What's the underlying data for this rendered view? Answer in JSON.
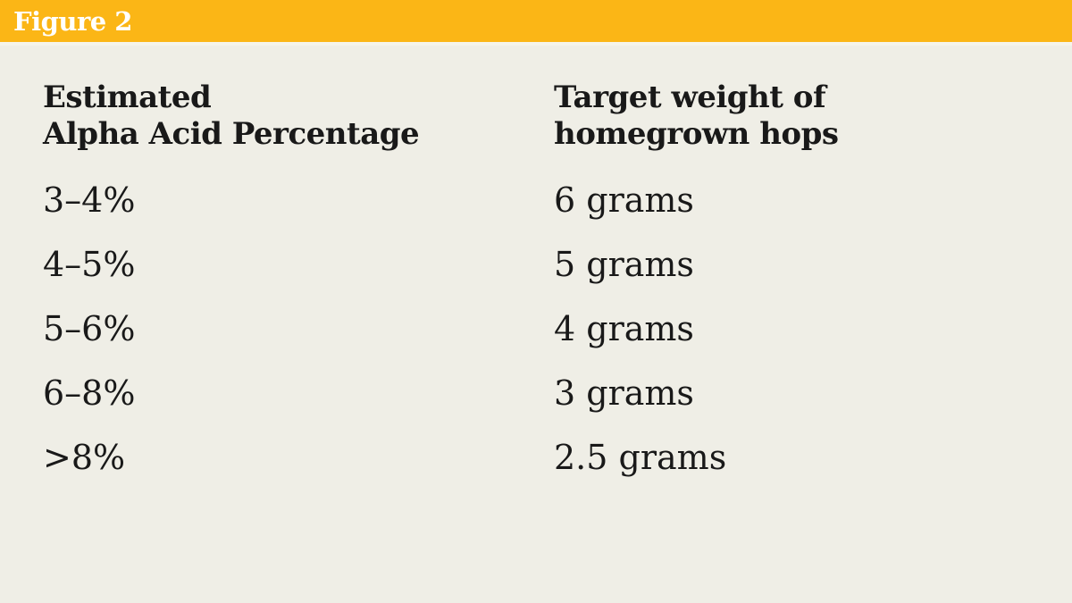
{
  "figure_label": "Figure 2",
  "colors": {
    "header_bar": "#fbb616",
    "background": "#efeee6",
    "text": "#191919",
    "figure_label_text": "#ffffff"
  },
  "headers": {
    "col1_line1": "Estimated",
    "col1_line2": "Alpha Acid Percentage",
    "col2_line1": "Target weight of",
    "col2_line2": "homegrown hops"
  },
  "chart_data": {
    "type": "table",
    "title": "Figure 2",
    "columns": [
      "Estimated Alpha Acid Percentage",
      "Target weight of homegrown hops"
    ],
    "rows": [
      [
        "3–4%",
        "6 grams"
      ],
      [
        "4–5%",
        "5 grams"
      ],
      [
        "5–6%",
        "4 grams"
      ],
      [
        "6–8%",
        "3 grams"
      ],
      [
        ">8%",
        "2.5 grams"
      ]
    ]
  }
}
